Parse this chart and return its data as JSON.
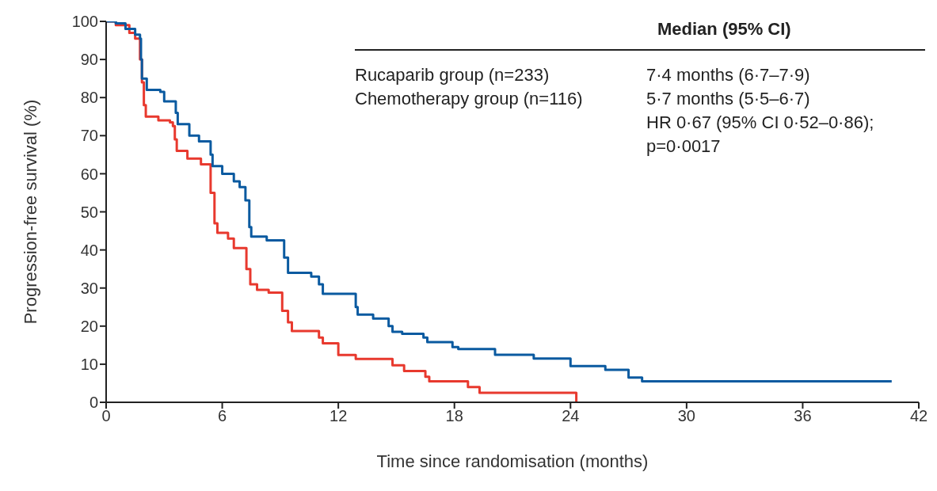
{
  "chart_data": {
    "type": "step",
    "xlabel": "Time since randomisation (months)",
    "ylabel": "Progression-free survival (%)",
    "xlim": [
      0,
      42
    ],
    "xticks": [
      0,
      6,
      12,
      18,
      24,
      30,
      36,
      42
    ],
    "ylim": [
      0,
      100
    ],
    "yticks": [
      0,
      10,
      20,
      30,
      40,
      50,
      60,
      70,
      80,
      90,
      100
    ],
    "grid": false,
    "legend": false,
    "marker": "none",
    "line_style": "solid",
    "annotations": [
      "Median (95% CI)",
      "Rucaparib group (n=233)",
      "7·4 months (6·7–7·9)",
      "Chemotherapy group (n=116)",
      "5·7 months (5·5–6·7)",
      "HR 0·67 (95% CI 0·52–0·86); p=0·0017"
    ],
    "series": [
      {
        "color": "#e8392e",
        "x": [
          0,
          0.5,
          1.2,
          1.5,
          1.75,
          1.85,
          1.95,
          2.05,
          2.7,
          3.3,
          3.45,
          3.55,
          3.65,
          4.2,
          4.9,
          5.4,
          5.6,
          5.75,
          6.3,
          6.6,
          7.25,
          7.45,
          7.8,
          8.4,
          9.1,
          9.4,
          9.6,
          11.0,
          11.2,
          12.0,
          12.9,
          14.8,
          15.4,
          16.5,
          16.7,
          18.7,
          19.3,
          24.3,
          24.3
        ],
        "values": [
          100,
          99,
          97,
          95.5,
          90,
          84,
          78,
          75,
          74,
          73.5,
          72.5,
          69,
          66,
          64,
          62.5,
          55,
          47,
          44.5,
          43,
          40.5,
          35,
          31,
          29.5,
          28.8,
          24,
          21,
          18.7,
          17,
          15.5,
          12.4,
          11.4,
          9.7,
          8.2,
          6.7,
          5.5,
          4,
          2.5,
          2.5,
          0
        ]
      },
      {
        "color": "#0a5aa0",
        "x": [
          0,
          0.5,
          1.0,
          1.5,
          1.75,
          1.8,
          1.85,
          2.1,
          2.8,
          3.0,
          3.6,
          3.7,
          4.3,
          4.8,
          5.4,
          5.5,
          6.0,
          6.6,
          6.9,
          7.2,
          7.4,
          7.5,
          8.3,
          9.2,
          9.4,
          10.6,
          11.0,
          11.2,
          12.9,
          13.0,
          13.8,
          14.6,
          14.8,
          15.3,
          16.4,
          16.6,
          17.9,
          18.2,
          20.1,
          22.1,
          24.0,
          25.8,
          27.0,
          27.7,
          40.6
        ],
        "values": [
          100,
          99.5,
          98,
          96.5,
          95.5,
          90,
          85,
          82,
          81.5,
          79,
          76,
          73,
          70,
          68.5,
          65,
          62,
          60,
          58,
          56.5,
          53,
          46,
          43.5,
          42.5,
          38,
          34,
          33,
          31,
          28.5,
          25,
          23,
          22,
          20,
          18.5,
          18,
          17,
          15.8,
          14.5,
          14,
          12.5,
          11.5,
          9.5,
          8.5,
          6.5,
          5.5,
          5.5
        ]
      }
    ]
  }
}
